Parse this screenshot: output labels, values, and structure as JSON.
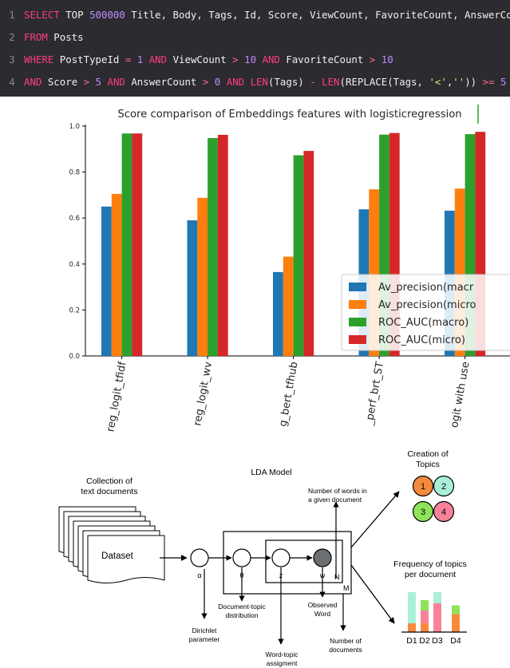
{
  "sql": {
    "lines": [
      {
        "n": "1",
        "tokens": [
          [
            "kw",
            "SELECT"
          ],
          [
            "t",
            " TOP "
          ],
          [
            "num",
            "500000"
          ],
          [
            "t",
            " Title, Body, Tags, Id, Score, ViewCount, FavoriteCount, AnswerCount"
          ]
        ]
      },
      {
        "n": "2",
        "tokens": [
          [
            "kw",
            "FROM"
          ],
          [
            "t",
            " Posts"
          ]
        ]
      },
      {
        "n": "3",
        "tokens": [
          [
            "kw",
            "WHERE"
          ],
          [
            "t",
            " PostTypeId "
          ],
          [
            "op",
            "="
          ],
          [
            "t",
            " "
          ],
          [
            "num",
            "1"
          ],
          [
            "t",
            " "
          ],
          [
            "kw",
            "AND"
          ],
          [
            "t",
            " ViewCount "
          ],
          [
            "op",
            ">"
          ],
          [
            "t",
            " "
          ],
          [
            "num",
            "10"
          ],
          [
            "t",
            " "
          ],
          [
            "kw",
            "AND"
          ],
          [
            "t",
            " FavoriteCount "
          ],
          [
            "op",
            ">"
          ],
          [
            "t",
            " "
          ],
          [
            "num",
            "10"
          ]
        ]
      },
      {
        "n": "4",
        "tokens": [
          [
            "kw",
            "AND"
          ],
          [
            "t",
            " Score "
          ],
          [
            "op",
            ">"
          ],
          [
            "t",
            " "
          ],
          [
            "num",
            "5"
          ],
          [
            "t",
            " "
          ],
          [
            "kw",
            "AND"
          ],
          [
            "t",
            " AnswerCount "
          ],
          [
            "op",
            ">"
          ],
          [
            "t",
            " "
          ],
          [
            "num",
            "0"
          ],
          [
            "t",
            " "
          ],
          [
            "kw",
            "AND"
          ],
          [
            "t",
            " "
          ],
          [
            "kw",
            "LEN"
          ],
          [
            "t",
            "(Tags) "
          ],
          [
            "op",
            "-"
          ],
          [
            "t",
            " "
          ],
          [
            "kw",
            "LEN"
          ],
          [
            "t",
            "(REPLACE(Tags, "
          ],
          [
            "str",
            "'<'"
          ],
          [
            "t",
            ","
          ],
          [
            "str",
            "''"
          ],
          [
            "t",
            "))"
          ],
          [
            "t",
            " "
          ],
          [
            "op",
            ">="
          ],
          [
            "t",
            " "
          ],
          [
            "num",
            "5"
          ]
        ]
      }
    ]
  },
  "chart_data": {
    "type": "bar",
    "title": "Score comparison of Embeddings features with logisticregression",
    "categories": [
      "reg_logit_tfidf",
      "reg_logit_wv",
      "g_bert_tfhub",
      "_perf_brt_ST",
      "ogit with use"
    ],
    "series": [
      {
        "name": "Av_precision(macr",
        "color": "#1f77b4",
        "values": [
          0.65,
          0.59,
          0.365,
          0.638,
          0.632
        ]
      },
      {
        "name": "Av_precision(micro",
        "color": "#ff7f0e",
        "values": [
          0.705,
          0.688,
          0.432,
          0.725,
          0.728
        ]
      },
      {
        "name": "ROC_AUC(macro)",
        "color": "#2ca02c",
        "values": [
          0.968,
          0.948,
          0.873,
          0.963,
          0.965
        ]
      },
      {
        "name": "ROC_AUC(micro)",
        "color": "#d62728",
        "values": [
          0.968,
          0.962,
          0.892,
          0.97,
          0.975
        ]
      }
    ],
    "yticks": [
      "0.0",
      "0.2",
      "0.4",
      "0.6",
      "0.8",
      "1.0"
    ],
    "ylim": [
      0,
      1.0
    ],
    "legend": "bottom-right",
    "grid": false
  },
  "diagram": {
    "collection_label": [
      "Collection of",
      "text documents"
    ],
    "dataset_label": "Dataset",
    "lda_title": "LDA Model",
    "words_label": [
      "Number of words in",
      "a given document"
    ],
    "symbols": {
      "alpha": "α",
      "theta": "θ",
      "z": "z",
      "w": "w",
      "N": "N",
      "M": "M"
    },
    "dirichlet_label": [
      "Dirichlet",
      "parameter"
    ],
    "doc_topic_label": [
      "Document-topic",
      "distribution"
    ],
    "word_topic_label": [
      "Word-topic",
      "assigment"
    ],
    "observed_label": [
      "Observed",
      "Word"
    ],
    "num_docs_label": [
      "Number of",
      "documents"
    ],
    "creation_label": [
      "Creation of",
      "Topics"
    ],
    "topics": [
      {
        "label": "1",
        "color": "#f58a3c"
      },
      {
        "label": "2",
        "color": "#a8f0d8"
      },
      {
        "label": "3",
        "color": "#8fe35a"
      },
      {
        "label": "4",
        "color": "#f7829a"
      }
    ],
    "frequency_label": [
      "Frequency of topics",
      "per document"
    ],
    "docs": [
      "D1",
      "D2",
      "D3",
      "D4"
    ],
    "doc_bars": [
      [
        {
          "topic": 0,
          "v": 0.22
        },
        {
          "topic": 1,
          "v": 0.78
        }
      ],
      [
        {
          "topic": 0,
          "v": 0.22
        },
        {
          "topic": 3,
          "v": 0.32
        },
        {
          "topic": 2,
          "v": 0.26
        }
      ],
      [
        {
          "topic": 3,
          "v": 0.72
        },
        {
          "topic": 1,
          "v": 0.28
        }
      ],
      [
        {
          "topic": 0,
          "v": 0.45
        },
        {
          "topic": 2,
          "v": 0.22
        }
      ]
    ]
  }
}
